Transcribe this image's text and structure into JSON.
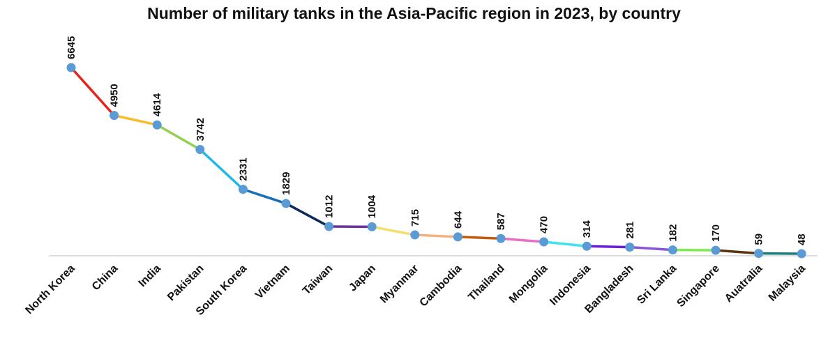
{
  "chart_data": {
    "type": "line",
    "title": "Number of military tanks in the Asia-Pacific region in 2023, by country",
    "xlabel": "",
    "ylabel": "",
    "ylim": [
      0,
      7000
    ],
    "grid": false,
    "categories": [
      "North Korea",
      "China",
      "India",
      "Pakistan",
      "South Korea",
      "Vietnam",
      "Taiwan",
      "Japan",
      "Myanmar",
      "Cambodia",
      "Thailand",
      "Mongolia",
      "Indonesia",
      "Bangladesh",
      "Sri Lanka",
      "Singapore",
      "Auatralia",
      "Malaysia"
    ],
    "series": [
      {
        "values": [
          6645,
          4950,
          4614,
          3742,
          2331,
          1829,
          1012,
          1004,
          715,
          644,
          587,
          470,
          314,
          281,
          182,
          170,
          59,
          48
        ],
        "marker_color": "#5B9BD5"
      }
    ],
    "segment_colors": [
      "#E8211B",
      "#F9BC2C",
      "#92D050",
      "#1FB8E8",
      "#1A6EB8",
      "#0D2B5A",
      "#7030A0",
      "#F5DD6E",
      "#F4B183",
      "#C55A11",
      "#E86FC3",
      "#3EE3F0",
      "#6A1FD0",
      "#8A55D8",
      "#7CEB4E",
      "#5C3310",
      "#1F7F7F",
      "#1414C8"
    ],
    "axis_color": "#d0d0d0"
  }
}
